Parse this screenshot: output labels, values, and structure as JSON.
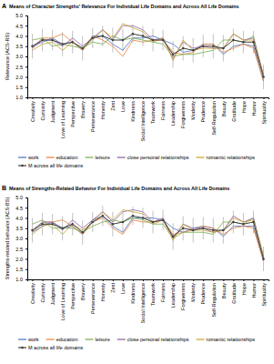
{
  "chart_data": [
    {
      "type": "line",
      "label": "A",
      "title": "Means of Character Strengths' Relevance For Individual Life Domains and Across All Life Domains",
      "y_label": "Relevance (ACS-RS)",
      "categories": [
        "Creativity",
        "Curiosity",
        "Judgment",
        "Love of Learning",
        "Perspective",
        "Bravery",
        "Perseverance",
        "Honesty",
        "Zest",
        "Love",
        "Kindness",
        "Social Intelligence",
        "Teamwork",
        "Fairness",
        "Leadership",
        "Forgiveness",
        "Modesty",
        "Prudence",
        "Self-Regulation",
        "Beauty",
        "Gratitude",
        "Hope",
        "Humor",
        "Spirituality"
      ],
      "ylim": [
        1,
        5
      ],
      "yticks": [
        {
          "value": 1,
          "label": "1.0"
        },
        {
          "value": 1.5,
          "label": "1.5"
        },
        {
          "value": 2,
          "label": "2.0"
        },
        {
          "value": 2.5,
          "label": "2.5"
        },
        {
          "value": 3,
          "label": "3.0"
        },
        {
          "value": 3.5,
          "label": "3.5"
        },
        {
          "value": 4,
          "label": "4.0"
        },
        {
          "value": 4.5,
          "label": "4.5"
        },
        {
          "value": 5,
          "label": "5.0"
        }
      ],
      "grid": false,
      "legend": "bottom",
      "series": [
        {
          "name": "work",
          "color": "#4472c4",
          "values": [
            3.5,
            3.7,
            3.9,
            3.6,
            3.7,
            3.3,
            4.0,
            4.0,
            3.6,
            3.3,
            3.9,
            3.9,
            4.0,
            3.8,
            3.6,
            3.2,
            3.3,
            3.6,
            3.6,
            3.1,
            3.5,
            3.6,
            3.5,
            1.8
          ]
        },
        {
          "name": "education",
          "color": "#ed7d31",
          "values": [
            3.4,
            3.9,
            3.9,
            4.1,
            3.7,
            3.3,
            4.0,
            3.8,
            3.5,
            3.0,
            3.8,
            3.7,
            3.8,
            3.8,
            3.2,
            3.1,
            3.2,
            3.6,
            3.6,
            3.2,
            3.4,
            3.6,
            3.4,
            1.8
          ]
        },
        {
          "name": "leisure",
          "color": "#70ad47",
          "values": [
            3.8,
            3.9,
            3.5,
            3.6,
            3.5,
            3.4,
            3.7,
            3.6,
            4.0,
            3.8,
            3.9,
            3.8,
            3.7,
            3.6,
            3.0,
            3.1,
            3.1,
            3.2,
            3.3,
            3.8,
            3.8,
            3.7,
            4.0,
            2.0
          ]
        },
        {
          "name": "close personal relationships",
          "color": "#8e5ea2",
          "values": [
            3.4,
            3.8,
            3.8,
            3.5,
            3.9,
            3.5,
            3.9,
            4.3,
            3.8,
            4.5,
            4.5,
            4.3,
            3.8,
            3.9,
            2.9,
            3.7,
            3.4,
            3.5,
            3.4,
            3.4,
            4.1,
            3.8,
            3.9,
            2.1
          ]
        },
        {
          "name": "romantic relationships",
          "color": "#c9a227",
          "values": [
            3.3,
            3.6,
            3.7,
            3.3,
            3.7,
            3.4,
            3.8,
            4.3,
            3.9,
            4.6,
            4.4,
            4.2,
            3.7,
            3.9,
            2.8,
            3.8,
            3.3,
            3.4,
            3.4,
            3.4,
            4.1,
            3.8,
            3.8,
            2.1
          ]
        },
        {
          "name": "M across all life domains",
          "color": "#404040",
          "marker": "circle",
          "values": [
            3.5,
            3.8,
            3.8,
            3.6,
            3.7,
            3.4,
            3.9,
            4.0,
            3.8,
            3.8,
            4.1,
            4.0,
            3.8,
            3.8,
            3.1,
            3.4,
            3.3,
            3.5,
            3.5,
            3.4,
            3.8,
            3.7,
            3.7,
            2.0
          ],
          "errors": [
            0.6,
            0.55,
            0.5,
            0.6,
            0.55,
            0.6,
            0.5,
            0.5,
            0.6,
            0.55,
            0.45,
            0.5,
            0.55,
            0.5,
            0.65,
            0.6,
            0.6,
            0.55,
            0.6,
            0.65,
            0.55,
            0.55,
            0.55,
            0.6
          ]
        }
      ]
    },
    {
      "type": "line",
      "label": "B",
      "title": "Means of Strengths-Related Behavior For Individual Life Domains and Across All Life Domains",
      "y_label": "Strengths-related behavior (ACS-BS)",
      "categories": [
        "Creativity",
        "Curiosity",
        "Judgment",
        "Love of Learning",
        "Perspective",
        "Bravery",
        "Perseverance",
        "Honesty",
        "Zest",
        "Love",
        "Kindness",
        "Social Intelligence",
        "Teamwork",
        "Fairness",
        "Leadership",
        "Forgiveness",
        "Modesty",
        "Prudence",
        "Self-Regulation",
        "Beauty",
        "Gratitude",
        "Hope",
        "Humor",
        "Spirituality"
      ],
      "ylim": [
        1,
        5
      ],
      "yticks": [
        {
          "value": 1,
          "label": "1.0"
        },
        {
          "value": 1.5,
          "label": "1.5"
        },
        {
          "value": 2,
          "label": "2.0"
        },
        {
          "value": 2.5,
          "label": "2.5"
        },
        {
          "value": 3,
          "label": "3.0"
        },
        {
          "value": 3.5,
          "label": "3.5"
        },
        {
          "value": 4,
          "label": "4.0"
        },
        {
          "value": 4.5,
          "label": "4.5"
        },
        {
          "value": 5,
          "label": "5.0"
        }
      ],
      "grid": false,
      "legend": "bottom",
      "series": [
        {
          "name": "work",
          "color": "#4472c4",
          "values": [
            3.3,
            3.6,
            3.8,
            3.5,
            3.6,
            3.2,
            3.9,
            4.1,
            3.6,
            3.3,
            4.0,
            4.0,
            4.0,
            3.9,
            3.5,
            3.3,
            3.5,
            3.6,
            3.5,
            3.1,
            3.6,
            3.6,
            3.6,
            1.9
          ]
        },
        {
          "name": "education",
          "color": "#ed7d31",
          "values": [
            3.3,
            3.8,
            3.8,
            3.9,
            3.6,
            3.2,
            3.8,
            4.0,
            3.5,
            3.2,
            3.9,
            3.8,
            3.8,
            3.9,
            3.2,
            3.3,
            3.4,
            3.6,
            3.5,
            3.2,
            3.5,
            3.6,
            3.5,
            1.9
          ]
        },
        {
          "name": "leisure",
          "color": "#70ad47",
          "values": [
            3.7,
            3.9,
            3.5,
            3.5,
            3.5,
            3.3,
            3.6,
            3.8,
            3.9,
            3.8,
            4.0,
            3.9,
            3.7,
            3.7,
            3.0,
            3.3,
            3.3,
            3.3,
            3.2,
            3.8,
            3.8,
            3.7,
            4.0,
            2.1
          ]
        },
        {
          "name": "close personal relationships",
          "color": "#8e5ea2",
          "values": [
            3.4,
            3.8,
            3.8,
            3.4,
            3.9,
            3.5,
            3.9,
            4.3,
            3.8,
            4.3,
            4.4,
            4.3,
            3.8,
            4.0,
            3.0,
            3.7,
            3.5,
            3.5,
            3.3,
            3.4,
            4.1,
            3.8,
            4.0,
            2.1
          ]
        },
        {
          "name": "romantic relationships",
          "color": "#c9a227",
          "values": [
            3.2,
            3.6,
            3.7,
            3.2,
            3.7,
            3.4,
            3.8,
            4.3,
            3.9,
            4.4,
            4.3,
            4.2,
            3.7,
            3.9,
            2.9,
            3.7,
            3.4,
            3.4,
            3.3,
            3.4,
            4.0,
            3.8,
            3.9,
            2.1
          ]
        },
        {
          "name": "M across all life domains",
          "color": "#404040",
          "marker": "circle",
          "values": [
            3.4,
            3.7,
            3.7,
            3.5,
            3.7,
            3.3,
            3.8,
            4.1,
            3.7,
            3.8,
            4.1,
            4.0,
            3.8,
            3.9,
            3.1,
            3.5,
            3.4,
            3.5,
            3.4,
            3.4,
            3.8,
            3.7,
            3.8,
            2.0
          ],
          "errors": [
            0.6,
            0.55,
            0.5,
            0.6,
            0.55,
            0.6,
            0.5,
            0.5,
            0.6,
            0.55,
            0.45,
            0.5,
            0.55,
            0.5,
            0.65,
            0.6,
            0.6,
            0.55,
            0.6,
            0.65,
            0.55,
            0.55,
            0.55,
            0.6
          ]
        }
      ]
    }
  ]
}
